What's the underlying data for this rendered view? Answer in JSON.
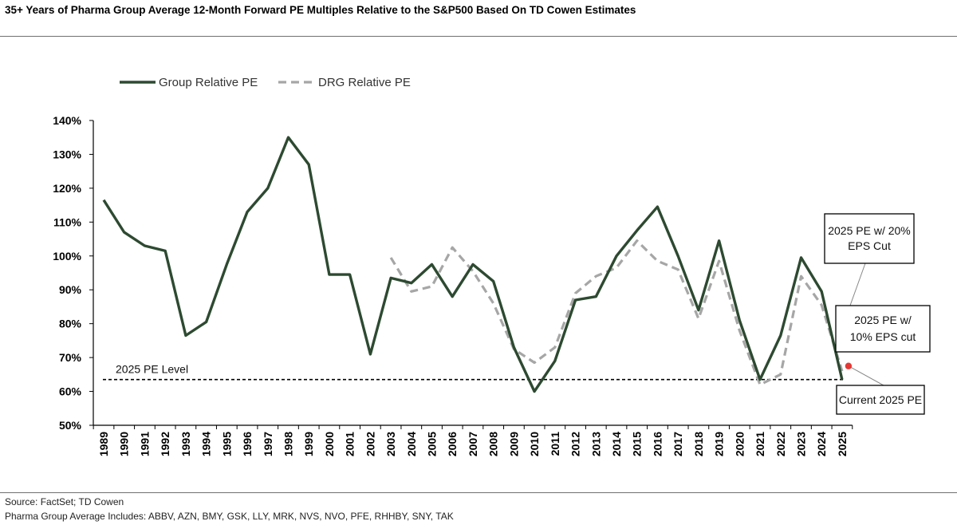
{
  "title": "35+ Years of Pharma Group Average 12-Month Forward PE Multiples Relative to the S&P500 Based On TD Cowen Estimates",
  "footer": {
    "source": "Source: FactSet; TD Cowen",
    "includes": "Pharma Group Average Includes: ABBV, AZN, BMY, GSK, LLY, MRK, NVS, NVO, PFE, RHHBY, SNY, TAK"
  },
  "colors": {
    "group": "#2d4a31",
    "drg": "#a6a6a6",
    "marker": "#e53935",
    "axis": "#000000"
  },
  "chart_data": {
    "type": "line",
    "x": [
      "1989",
      "1990",
      "1991",
      "1992",
      "1993",
      "1994",
      "1995",
      "1996",
      "1997",
      "1998",
      "1999",
      "2000",
      "2001",
      "2002",
      "2003",
      "2004",
      "2005",
      "2006",
      "2007",
      "2008",
      "2009",
      "2010",
      "2011",
      "2012",
      "2013",
      "2014",
      "2015",
      "2016",
      "2017",
      "2018",
      "2019",
      "2020",
      "2021",
      "2022",
      "2023",
      "2024",
      "2025"
    ],
    "yticks": [
      "50%",
      "60%",
      "70%",
      "80%",
      "90%",
      "100%",
      "110%",
      "120%",
      "130%",
      "140%"
    ],
    "ylim": [
      50,
      140
    ],
    "legend_position": "top-left",
    "series": [
      {
        "name": "Group Relative PE",
        "style": "solid",
        "values": [
          116.5,
          107,
          103,
          101.5,
          76.5,
          80.5,
          97.5,
          113,
          120,
          135,
          127,
          94.5,
          94.5,
          71,
          93.5,
          92,
          97.5,
          88,
          97.5,
          92.5,
          73,
          60,
          69,
          87,
          88,
          100,
          107.5,
          114.5,
          100,
          84,
          104.5,
          81,
          63.5,
          76.5,
          99.5,
          89.5,
          63.5
        ]
      },
      {
        "name": "DRG Relative PE",
        "style": "dashed",
        "values": [
          null,
          null,
          null,
          null,
          null,
          null,
          null,
          null,
          null,
          null,
          null,
          null,
          null,
          null,
          99.5,
          89.5,
          91,
          102.5,
          95.5,
          86,
          72.5,
          68.5,
          73,
          89,
          94,
          96.5,
          104.5,
          98.5,
          96,
          81.5,
          98.5,
          78,
          62,
          65,
          94,
          85.5,
          66
        ]
      }
    ],
    "reference_line": {
      "label": "2025 PE Level",
      "value": 63.5
    },
    "annotations": [
      {
        "label_lines": [
          "2025 PE w/ 20%",
          "EPS Cut"
        ],
        "x": "2025",
        "value": 84
      },
      {
        "label_lines": [
          "2025 PE w/",
          "10% EPS cut"
        ],
        "x": "2025",
        "value": 75
      },
      {
        "label_lines": [
          "Current 2025 PE"
        ],
        "x": "2025",
        "value": 67.5
      }
    ]
  }
}
